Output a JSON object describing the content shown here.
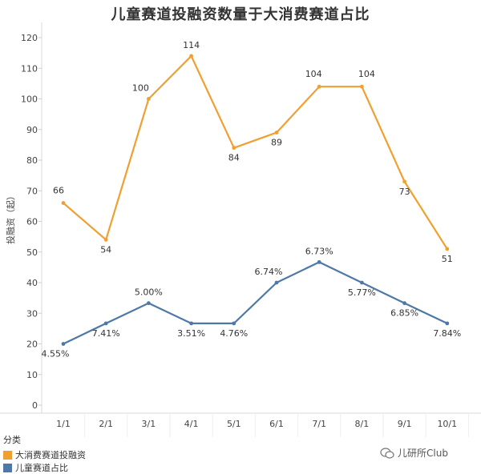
{
  "chart_data": {
    "type": "line",
    "title": "儿童赛道投融资数量于大消费赛道占比",
    "ylabel": "投融资（起）",
    "xlabel": "",
    "categories": [
      "1/1",
      "2/1",
      "3/1",
      "4/1",
      "5/1",
      "6/1",
      "7/1",
      "8/1",
      "9/1",
      "10/1"
    ],
    "ylim": [
      0,
      120
    ],
    "yticks": [
      0,
      10,
      20,
      30,
      40,
      50,
      60,
      70,
      80,
      90,
      100,
      110,
      120
    ],
    "legend_title": "分类",
    "series": [
      {
        "name": "大消费赛道投融资",
        "color": "#F0A030",
        "values": [
          66,
          54,
          100,
          114,
          84,
          89,
          104,
          104,
          73,
          51
        ],
        "labels": [
          "66",
          "54",
          "100",
          "114",
          "84",
          "89",
          "104",
          "104",
          "73",
          "51"
        ]
      },
      {
        "name": "儿童赛道占比",
        "color": "#4E79A7",
        "values": [
          20,
          26.7,
          33.3,
          26.7,
          26.7,
          40,
          46.7,
          40,
          33.3,
          26.7
        ],
        "labels": [
          "4.55%",
          "7.41%",
          "5.00%",
          "3.51%",
          "4.76%",
          "6.74%",
          "6.73%",
          "5.77%",
          "6.85%",
          "7.84%"
        ]
      }
    ]
  },
  "watermark": "儿研所Club"
}
